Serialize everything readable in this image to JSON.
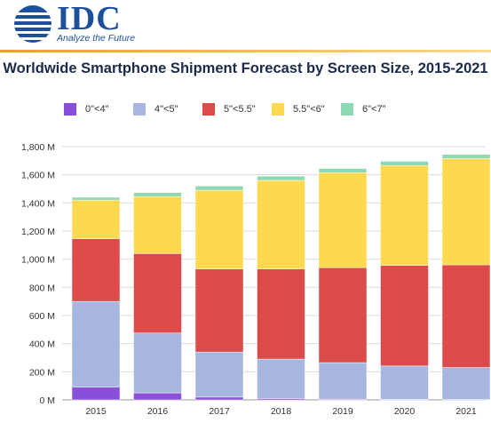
{
  "header": {
    "logo_text": "IDC",
    "tagline": "Analyze the Future"
  },
  "colors": {
    "brand": "#1c4f9c",
    "rule": "#e7a12a"
  },
  "chart_data": {
    "type": "bar",
    "stacked": true,
    "title": "Worldwide Smartphone Shipment Forecast by Screen Size, 2015-2021",
    "xlabel": "",
    "ylabel": "",
    "categories": [
      "2015",
      "2016",
      "2017",
      "2018",
      "2019",
      "2020",
      "2021"
    ],
    "ylim": [
      0,
      1800
    ],
    "yticks": [
      "0 M",
      "200 M",
      "400 M",
      "600 M",
      "800 M",
      "1,000 M",
      "1,200 M",
      "1,400 M",
      "1,600 M",
      "1,800 M"
    ],
    "grid": true,
    "legend_position": "top",
    "series": [
      {
        "name": "0\"<4\"",
        "color": "#8a4fd8",
        "values": [
          90,
          50,
          20,
          10,
          5,
          3,
          2
        ]
      },
      {
        "name": "4\"<5\"",
        "color": "#a6b6de",
        "values": [
          610,
          425,
          320,
          280,
          260,
          238,
          228
        ]
      },
      {
        "name": "5\"<5.5\"",
        "color": "#dc4a4a",
        "values": [
          445,
          565,
          590,
          640,
          675,
          715,
          730
        ]
      },
      {
        "name": "5.5\"<6\"",
        "color": "#fcd94f",
        "values": [
          275,
          405,
          560,
          630,
          675,
          710,
          755
        ]
      },
      {
        "name": "6\"<7\"",
        "color": "#8fd8b4",
        "values": [
          20,
          28,
          30,
          30,
          30,
          30,
          30
        ]
      }
    ]
  }
}
